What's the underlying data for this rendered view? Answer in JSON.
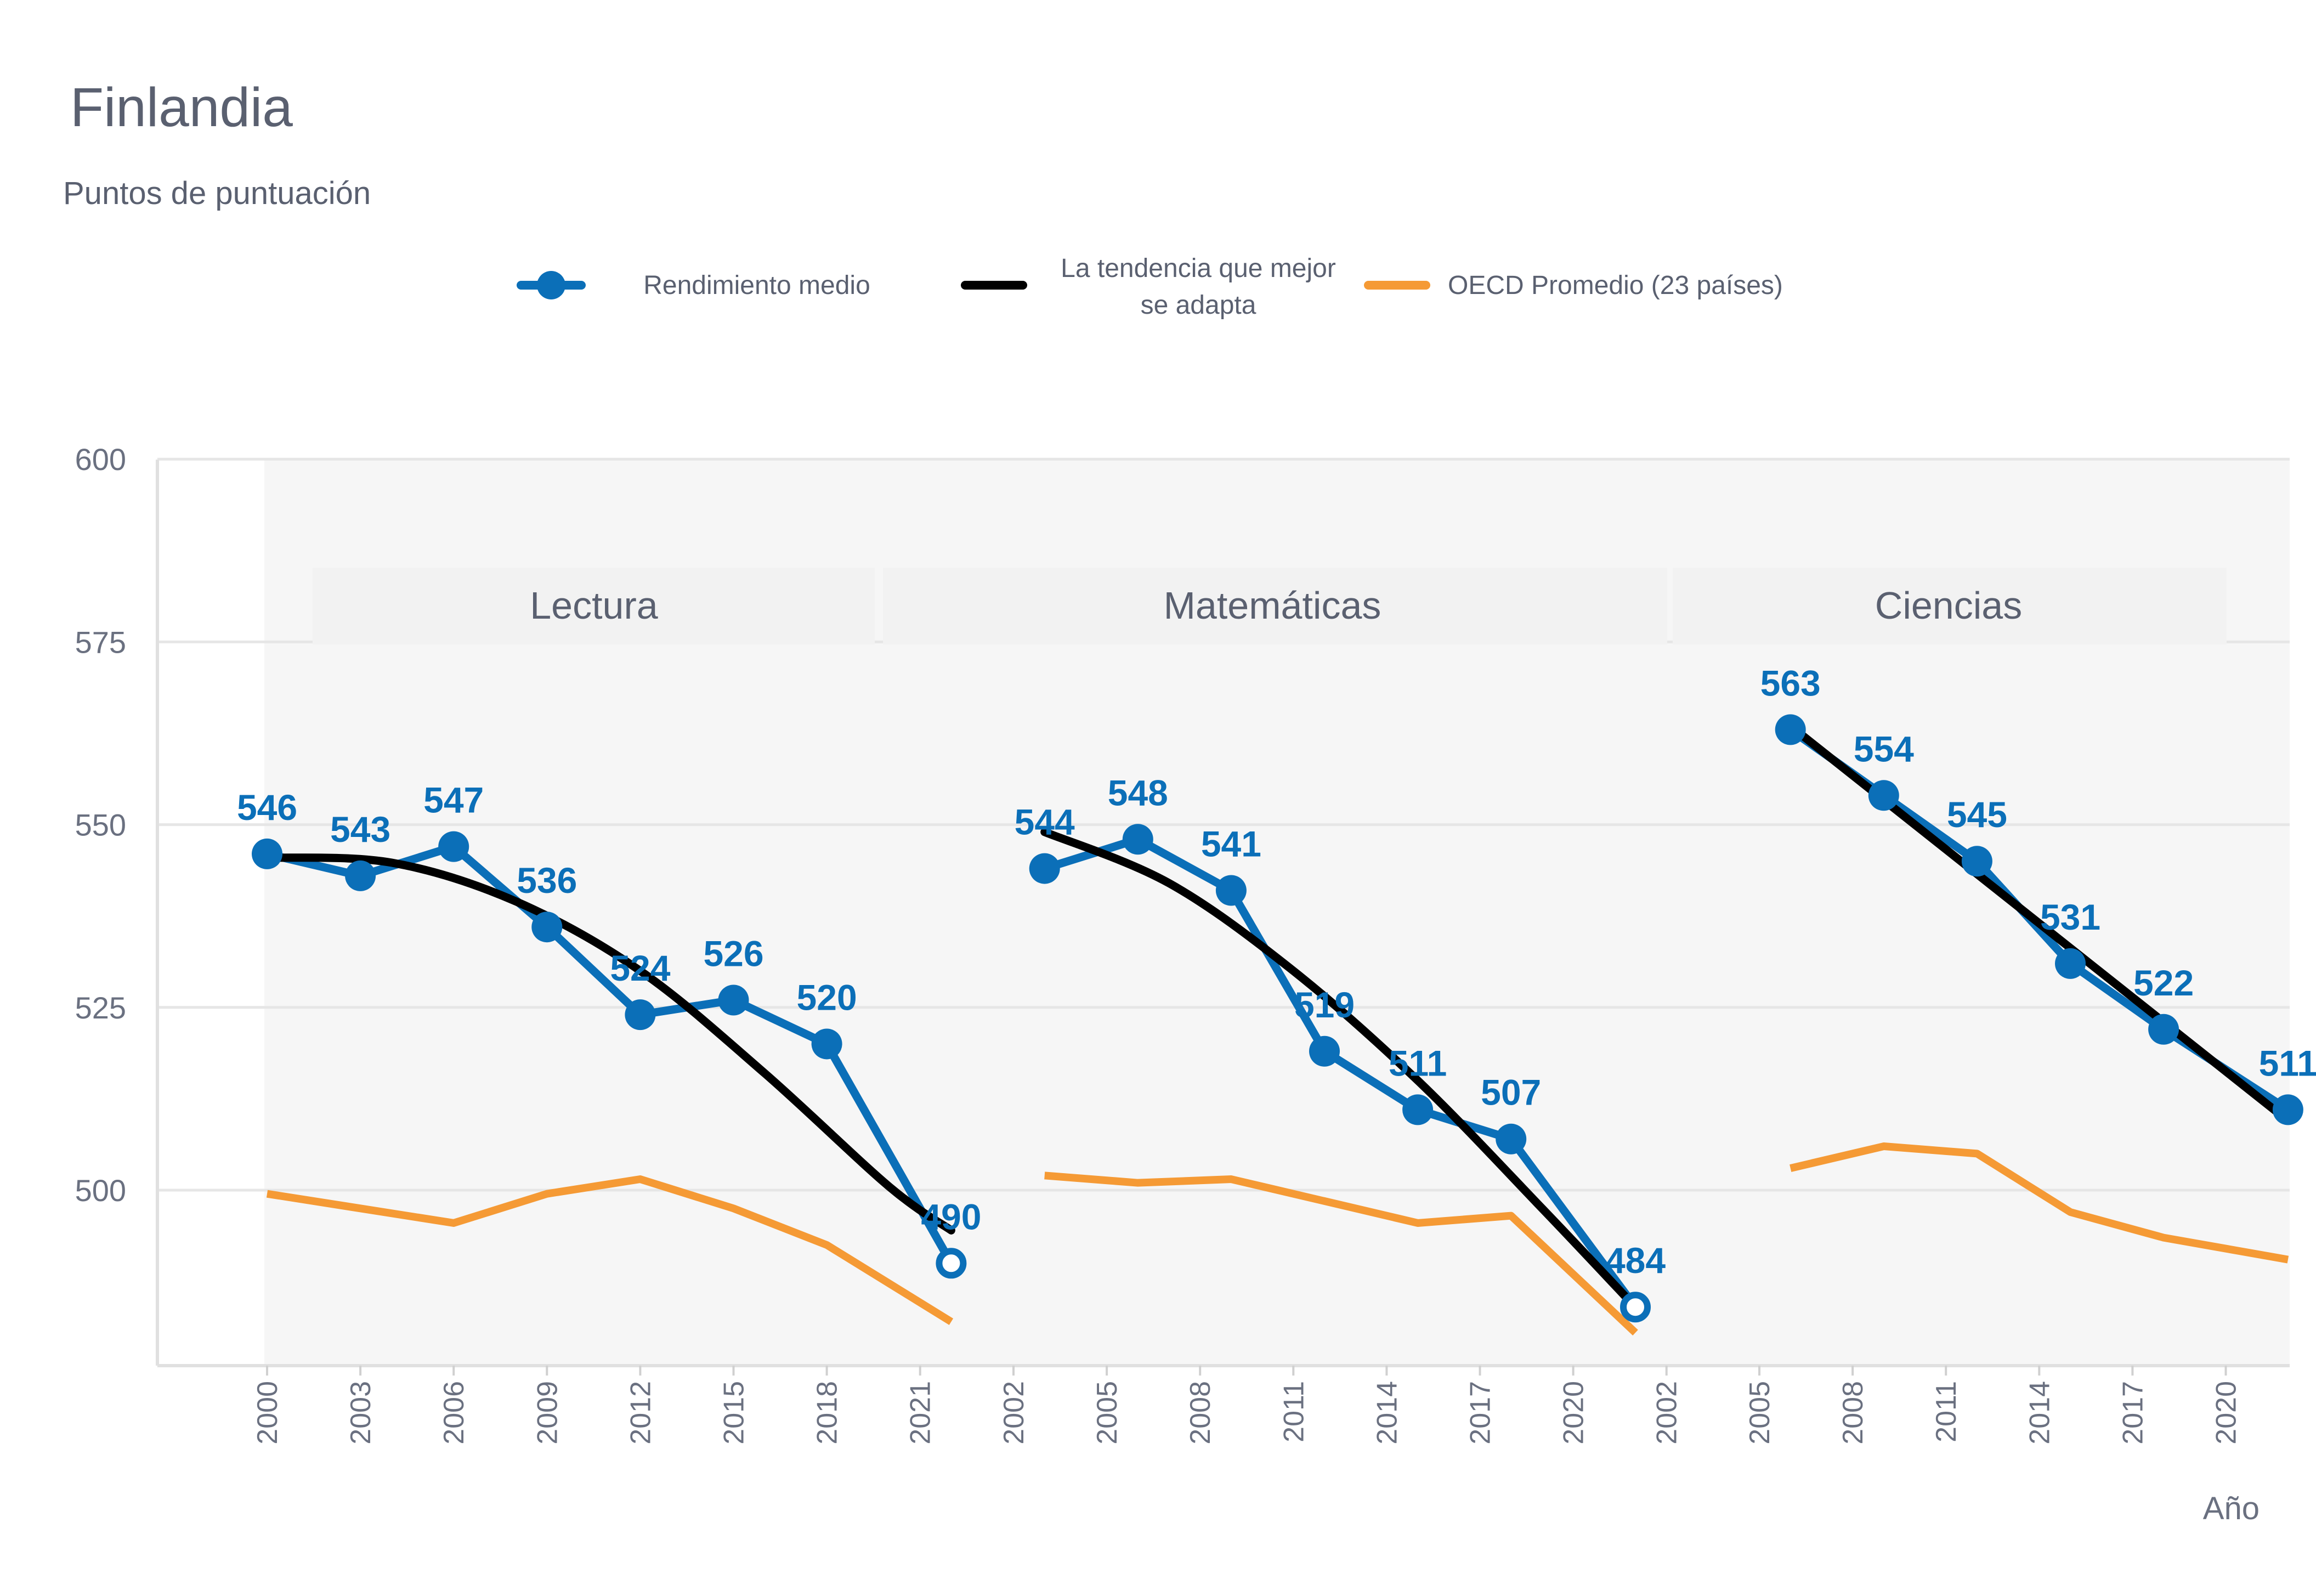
{
  "chart_data": {
    "type": "line",
    "title": "Finlandia",
    "subtitle": "Puntos de puntuación",
    "xlabel": "Año",
    "ylim": [
      475,
      600
    ],
    "yticks": [
      500,
      525,
      550,
      575,
      600
    ],
    "grid": true,
    "legend": {
      "placement": "top",
      "entries": [
        {
          "label": "Rendimiento medio",
          "color": "#0b6fb8",
          "marker": "circle"
        },
        {
          "label_lines": [
            "La tendencia que mejor",
            "se adapta"
          ],
          "color": "#000000"
        },
        {
          "label": "OECD Promedio (23 países)",
          "color": "#f59a35"
        }
      ]
    },
    "panels": [
      {
        "name": "Lectura",
        "x_ticks": [
          "2000",
          "2003",
          "2006",
          "2009",
          "2012",
          "2015",
          "2018",
          "2021"
        ],
        "series": [
          {
            "name": "Rendimiento medio",
            "x": [
              2000,
              2003,
              2006,
              2009,
              2012,
              2015,
              2018,
              2022
            ],
            "values": [
              546,
              543,
              547,
              536,
              524,
              526,
              520,
              490
            ],
            "labels": [
              "546",
              "543",
              "547",
              "536",
              "524",
              "526",
              "520",
              "490"
            ]
          },
          {
            "name": "La tendencia que mejor se adapta",
            "x": [
              2000,
              2004,
              2008,
              2012,
              2016,
              2020,
              2022
            ],
            "values": [
              545.5,
              544.8,
              539.5,
              530,
              516,
              500.5,
              494.5
            ]
          },
          {
            "name": "OECD Promedio (23 países)",
            "x": [
              2000,
              2003,
              2006,
              2009,
              2012,
              2015,
              2018,
              2022
            ],
            "values": [
              499.5,
              497.5,
              495.5,
              499.5,
              501.5,
              497.5,
              492.5,
              482
            ]
          }
        ]
      },
      {
        "name": "Matemáticas",
        "x_ticks": [
          "2002",
          "2005",
          "2008",
          "2011",
          "2014",
          "2017",
          "2020",
          "2002"
        ],
        "series": [
          {
            "name": "Rendimiento medio",
            "x": [
              2003,
              2006,
              2009,
              2012,
              2015,
              2018,
              2022
            ],
            "values": [
              544,
              548,
              541,
              519,
              511,
              507,
              484
            ],
            "labels": [
              "544",
              "548",
              "541",
              "519",
              "511",
              "507",
              "484"
            ]
          },
          {
            "name": "La tendencia que mejor se adapta",
            "x": [
              2003,
              2007,
              2011,
              2015,
              2019,
              2022
            ],
            "values": [
              549,
              542,
              530,
              515,
              497.5,
              484
            ]
          },
          {
            "name": "OECD Promedio (23 países)",
            "x": [
              2003,
              2006,
              2009,
              2012,
              2015,
              2018,
              2022
            ],
            "values": [
              502,
              501,
              501.5,
              498.5,
              495.5,
              496.5,
              480.5
            ]
          }
        ]
      },
      {
        "name": "Ciencias",
        "x_ticks": [
          "2005",
          "2008",
          "2011",
          "2014",
          "2017",
          "2020"
        ],
        "series": [
          {
            "name": "Rendimiento medio",
            "x": [
              2006,
              2009,
              2012,
              2015,
              2018,
              2022
            ],
            "values": [
              563,
              554,
              545,
              531,
              522,
              511
            ],
            "labels": [
              "563",
              "554",
              "545",
              "531",
              "522",
              "511"
            ]
          },
          {
            "name": "La tendencia que mejor se adapta",
            "x": [
              2006,
              2022
            ],
            "values": [
              563.5,
              509.5
            ]
          },
          {
            "name": "OECD Promedio (23 países)",
            "x": [
              2006,
              2009,
              2012,
              2015,
              2018,
              2022
            ],
            "values": [
              503,
              506,
              505,
              497,
              493.5,
              490.5
            ]
          }
        ]
      }
    ]
  },
  "colors": {
    "mean": "#0b6fb8",
    "trend": "#000000",
    "oecd": "#f59a35",
    "panel_bg": "#f6f6f6",
    "grid": "#e6e6e6",
    "text": "#5a6070"
  }
}
